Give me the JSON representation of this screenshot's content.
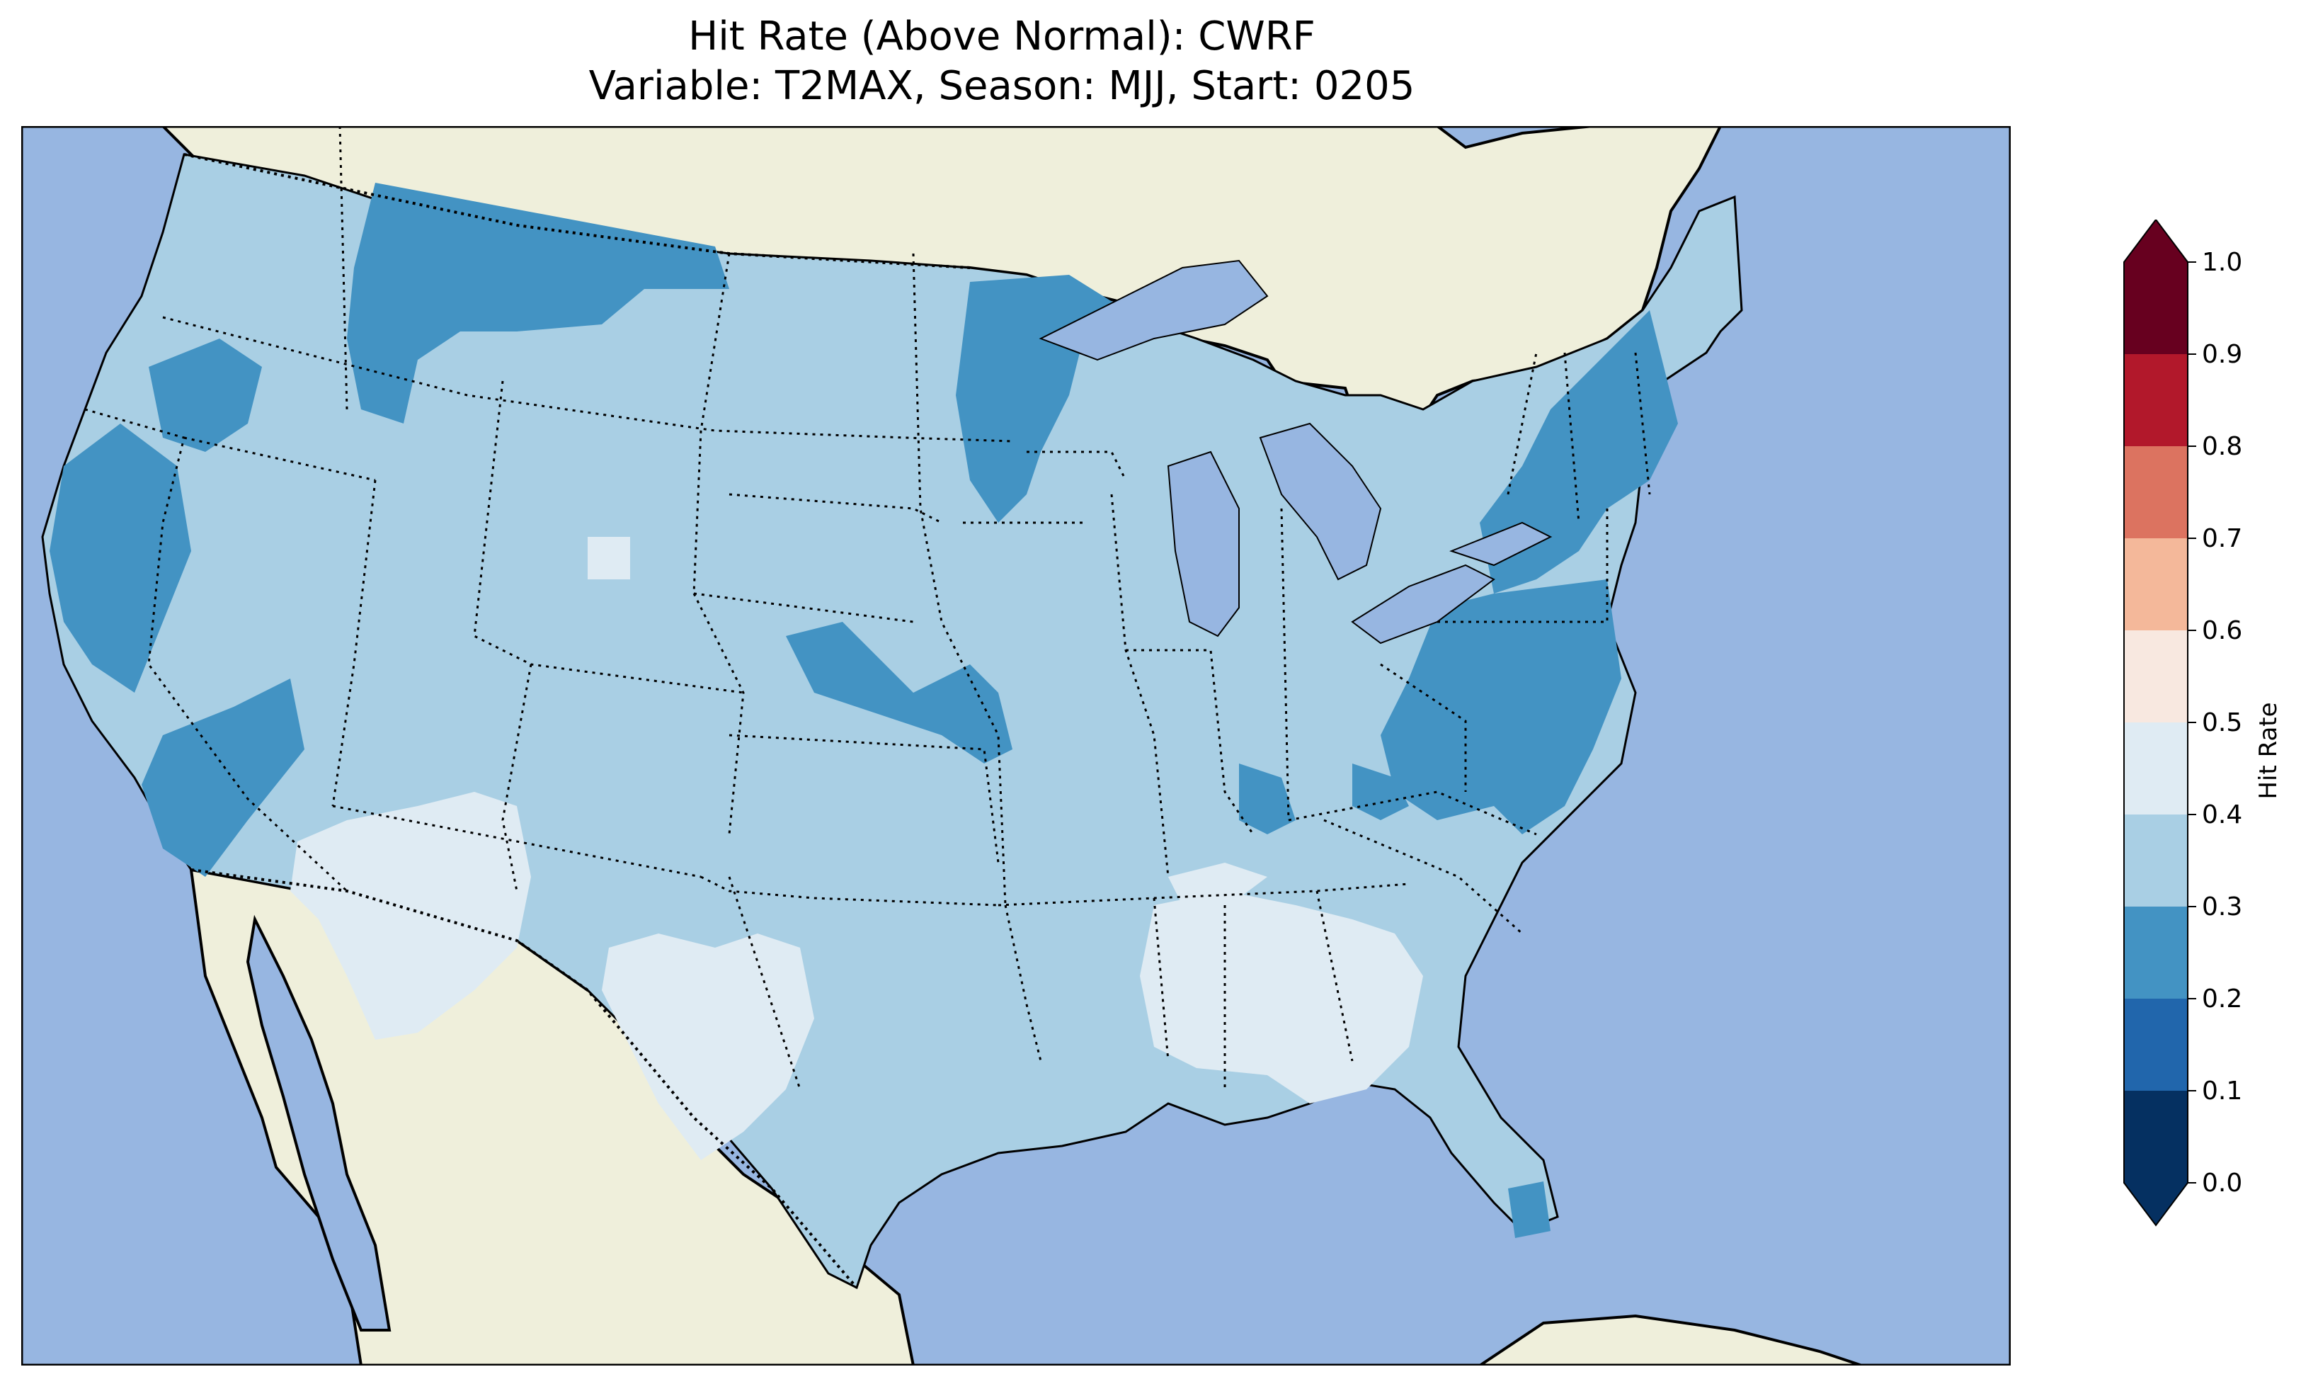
{
  "title": {
    "line1": "Hit Rate (Above Normal): CWRF",
    "line2": "Variable: T2MAX, Season: MJJ, Start: 0205"
  },
  "colors": {
    "ocean": "#97b6e1",
    "land": "#efefdb",
    "bin_0.2_0.3": "#4393c3",
    "bin_0.3_0.4": "#a9cfe4",
    "bin_0.4_0.5": "#dfebf3"
  },
  "colorbar": {
    "label": "Hit Rate",
    "ticks": [
      "0.0",
      "0.1",
      "0.2",
      "0.3",
      "0.4",
      "0.5",
      "0.6",
      "0.7",
      "0.8",
      "0.9",
      "1.0"
    ],
    "colors": [
      "#053061",
      "#2166ac",
      "#4393c3",
      "#a9cfe4",
      "#dfebf3",
      "#f8e8e0",
      "#f4b89a",
      "#dc7360",
      "#b2182b",
      "#67001f"
    ],
    "extend": "both"
  },
  "map": {
    "projection": "Lambert Conformal",
    "region": "Contiguous United States",
    "dominant_value_range": "0.3-0.4",
    "lower_value_regions": [
      "Pacific Northwest",
      "Northern Rockies",
      "Upper Midwest",
      "Northeast",
      "Mid-Atlantic",
      "California coast"
    ],
    "higher_value_regions": [
      "Southwest",
      "Texas",
      "Deep South"
    ]
  }
}
